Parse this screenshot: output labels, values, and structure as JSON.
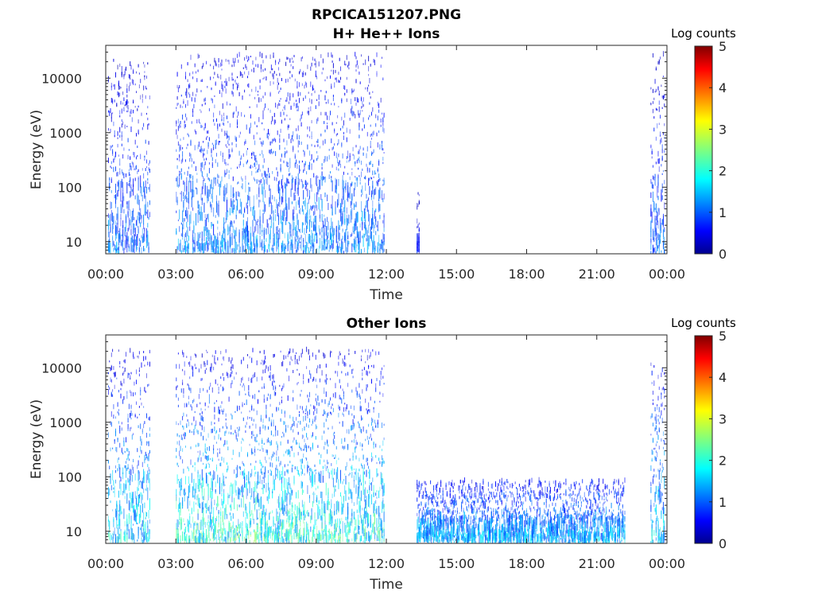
{
  "figure": {
    "title": "RPCICA151207.PNG"
  },
  "colors": {
    "axis": "#262626",
    "colormap": [
      "#00008f",
      "#0000ff",
      "#00bfff",
      "#40ffbf",
      "#ffff00",
      "#ff8000",
      "#ff0000",
      "#800000"
    ]
  },
  "chart_data": [
    {
      "type": "heatmap",
      "title": "H+ He++ Ions",
      "xlabel": "Time",
      "ylabel": "Energy (eV)",
      "x_ticks": [
        "00:00",
        "03:00",
        "06:00",
        "09:00",
        "12:00",
        "15:00",
        "18:00",
        "21:00",
        "00:00"
      ],
      "xlim_hours": [
        0,
        24
      ],
      "y_scale": "log",
      "ylim": [
        6,
        40000
      ],
      "y_ticks": [
        10,
        100,
        1000,
        10000
      ],
      "y_tick_labels": [
        "10",
        "100",
        "1000",
        "10000"
      ],
      "colorbar": {
        "label": "Log counts",
        "range": [
          0,
          5
        ],
        "ticks": [
          "0",
          "1",
          "2",
          "3",
          "4",
          "5"
        ]
      },
      "data_blocks": [
        {
          "start_hour": 0.1,
          "end_hour": 1.9,
          "emin": 6,
          "emax": 20000,
          "level_low": 1.3,
          "level_high": 0.4
        },
        {
          "start_hour": 3.0,
          "end_hour": 11.9,
          "emin": 6,
          "emax": 25000,
          "level_low": 1.4,
          "level_high": 0.5
        },
        {
          "start_hour": 13.3,
          "end_hour": 13.4,
          "emin": 6,
          "emax": 80,
          "level_low": 0.8,
          "level_high": 0.4
        },
        {
          "start_hour": 23.3,
          "end_hour": 23.9,
          "emin": 6,
          "emax": 25000,
          "level_low": 1.2,
          "level_high": 0.4
        }
      ]
    },
    {
      "type": "heatmap",
      "title": "Other Ions",
      "xlabel": "Time",
      "ylabel": "Energy (eV)",
      "x_ticks": [
        "00:00",
        "03:00",
        "06:00",
        "09:00",
        "12:00",
        "15:00",
        "18:00",
        "21:00",
        "00:00"
      ],
      "xlim_hours": [
        0,
        24
      ],
      "y_scale": "log",
      "ylim": [
        6,
        40000
      ],
      "y_ticks": [
        10,
        100,
        1000,
        10000
      ],
      "y_tick_labels": [
        "10",
        "100",
        "1000",
        "10000"
      ],
      "colorbar": {
        "label": "Log counts",
        "range": [
          0,
          5
        ],
        "ticks": [
          "0",
          "1",
          "2",
          "3",
          "4",
          "5"
        ]
      },
      "data_blocks": [
        {
          "start_hour": 0.1,
          "end_hour": 1.9,
          "emin": 6,
          "emax": 20000,
          "level_low": 1.9,
          "level_high": 0.5
        },
        {
          "start_hour": 3.0,
          "end_hour": 11.9,
          "emin": 6,
          "emax": 20000,
          "level_low": 2.2,
          "level_high": 0.5
        },
        {
          "start_hour": 13.3,
          "end_hour": 22.2,
          "emin": 6,
          "emax": 80,
          "level_low": 1.6,
          "level_high": 0.7
        },
        {
          "start_hour": 23.3,
          "end_hour": 23.9,
          "emin": 6,
          "emax": 15000,
          "level_low": 1.8,
          "level_high": 0.6
        }
      ]
    }
  ]
}
